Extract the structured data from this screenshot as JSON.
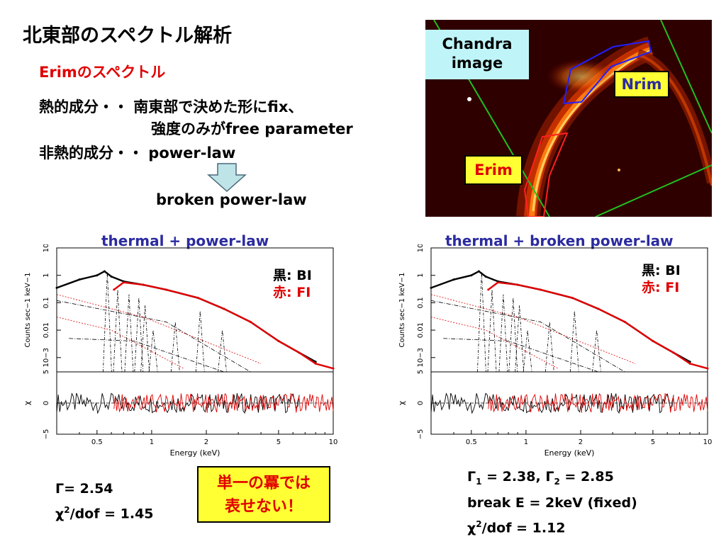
{
  "slide": {
    "title": "北東部のスペクトル解析",
    "subtitle": "Erimのスペクトル",
    "thermal_line1": "熱的成分・・ 南東部で決めた形にfix、",
    "thermal_line2": "強度のみがfree parameter",
    "nonthermal_line": "非熱的成分・・ power-law",
    "broken_label": "broken power-law",
    "callout_line1": "単一の冪では",
    "callout_line2": "表せない！"
  },
  "image_panel": {
    "chandra_label_1": "Chandra",
    "chandra_label_2": "image",
    "nrim_label": "Nrim",
    "erim_label": "Erim"
  },
  "legend": {
    "bi_label": "黒: BI",
    "fi_label": "赤: FI",
    "bi_color": "#000000",
    "fi_color": "#e00000"
  },
  "left_params": {
    "gamma": "Γ= 2.54",
    "chi_prefix": "χ",
    "chi_rest": "/dof = 1.45"
  },
  "right_params": {
    "gamma1": "Γ",
    "gamma1_sub": "1",
    "gamma1_val": " = 2.38,  Γ",
    "gamma2_sub": "2",
    "gamma2_val": " = 2.85",
    "break": "break E = 2keV (fixed)",
    "chi_prefix": "χ",
    "chi_rest": "/dof = 1.12"
  },
  "chart_data": [
    {
      "type": "line",
      "title": "thermal + power-law",
      "xlabel": "Energy (keV)",
      "ylabel": "Counts sec−1 keV−1",
      "xscale": "log",
      "yscale": "log",
      "xlim": [
        0.3,
        10
      ],
      "ylim": [
        0.0003,
        10
      ],
      "x_ticks": [
        "0.5",
        "1",
        "2",
        "5",
        "10"
      ],
      "y_ticks": [
        "10",
        "1",
        "0.1",
        "0.01",
        "10−3"
      ],
      "residual_ylabel": "χ",
      "residual_ylim": [
        -5,
        5
      ],
      "residual_ticks": [
        "5",
        "0",
        "−5"
      ],
      "series": [
        {
          "name": "黒: BI",
          "color": "#000000",
          "x": [
            0.3,
            0.4,
            0.5,
            0.55,
            0.6,
            0.7,
            0.9,
            1.2,
            1.8,
            2.5,
            3.5,
            5,
            6.5,
            8
          ],
          "y": [
            0.35,
            0.7,
            1.0,
            1.4,
            0.9,
            0.6,
            0.45,
            0.3,
            0.15,
            0.06,
            0.02,
            0.004,
            0.0015,
            0.0007
          ]
        },
        {
          "name": "赤: FI",
          "color": "#e00000",
          "x": [
            0.62,
            0.7,
            0.9,
            1.2,
            1.8,
            2.5,
            3.5,
            5,
            6.5,
            8,
            10
          ],
          "y": [
            0.3,
            0.55,
            0.45,
            0.3,
            0.15,
            0.06,
            0.02,
            0.004,
            0.0015,
            0.0006,
            0.0004
          ]
        }
      ]
    },
    {
      "type": "line",
      "title": "thermal + broken power-law",
      "xlabel": "Energy (keV)",
      "ylabel": "Counts sec−1 keV−1",
      "xscale": "log",
      "yscale": "log",
      "xlim": [
        0.3,
        10
      ],
      "ylim": [
        0.0003,
        10
      ],
      "x_ticks": [
        "0.5",
        "1",
        "2",
        "5",
        "10"
      ],
      "y_ticks": [
        "10",
        "1",
        "0.1",
        "0.01",
        "10−3"
      ],
      "residual_ylabel": "χ",
      "residual_ylim": [
        -5,
        5
      ],
      "residual_ticks": [
        "5",
        "0",
        "−5"
      ],
      "series": [
        {
          "name": "黒: BI",
          "color": "#000000",
          "x": [
            0.3,
            0.4,
            0.5,
            0.55,
            0.6,
            0.7,
            0.9,
            1.2,
            1.8,
            2.5,
            3.5,
            5,
            6.5,
            8
          ],
          "y": [
            0.35,
            0.7,
            1.0,
            1.4,
            0.9,
            0.6,
            0.45,
            0.3,
            0.15,
            0.06,
            0.02,
            0.004,
            0.0015,
            0.0007
          ]
        },
        {
          "name": "赤: FI",
          "color": "#e00000",
          "x": [
            0.62,
            0.7,
            0.9,
            1.2,
            1.8,
            2.5,
            3.5,
            5,
            6.5,
            8,
            10
          ],
          "y": [
            0.3,
            0.55,
            0.45,
            0.3,
            0.15,
            0.06,
            0.02,
            0.004,
            0.0015,
            0.0006,
            0.0004
          ]
        }
      ]
    }
  ]
}
